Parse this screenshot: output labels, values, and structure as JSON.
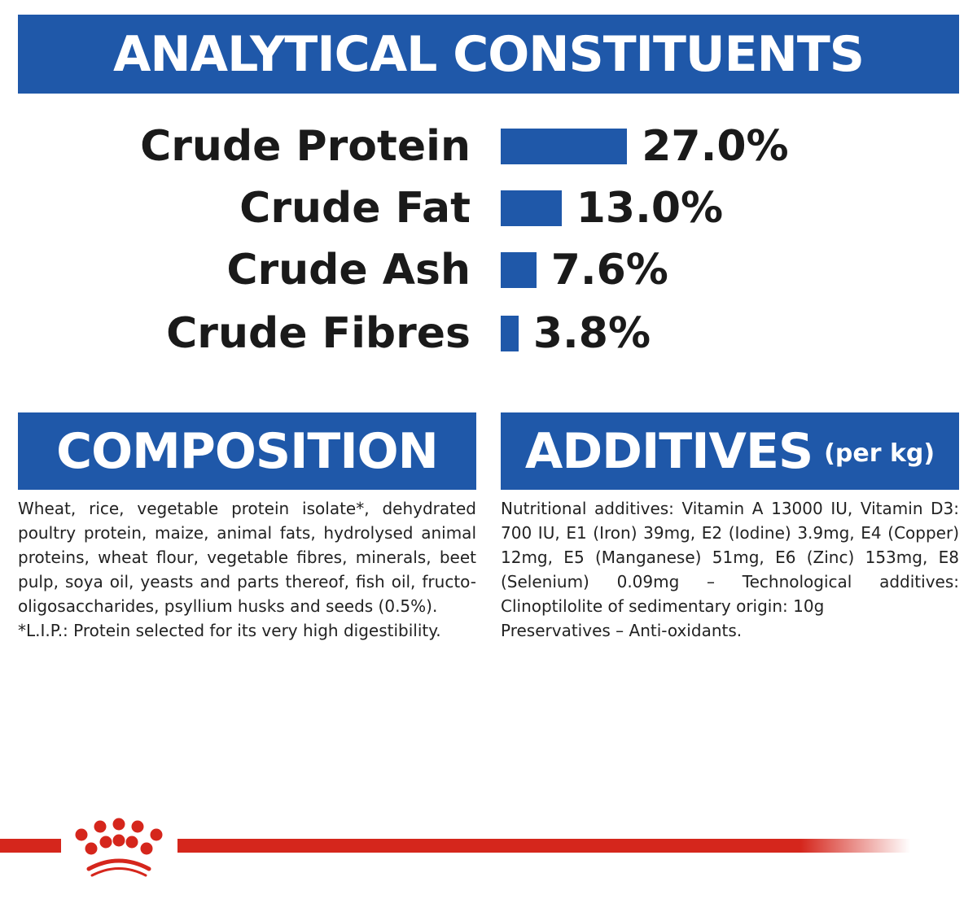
{
  "header": {
    "title": "ANALYTICAL CONSTITUENTS"
  },
  "chart_data": {
    "type": "bar",
    "orientation": "horizontal",
    "categories": [
      "Crude Protein",
      "Crude Fat",
      "Crude Ash",
      "Crude Fibres"
    ],
    "values": [
      27.0,
      13.0,
      7.6,
      3.8
    ],
    "value_labels": [
      "27.0%",
      "13.0%",
      "7.6%",
      "3.8%"
    ],
    "unit": "%",
    "grid": false,
    "bar_color": "#1f58a9"
  },
  "composition": {
    "title": "COMPOSITION",
    "text": "Wheat, rice, vegetable protein isolate*, dehydrated poultry protein, maize, animal fats, hydrolysed animal proteins, wheat flour, vegetable fibres, minerals, beet pulp, soya oil, yeasts and parts thereof, fish oil, fructo-oligosaccharides, psyllium husks and seeds (0.5%).",
    "footnote": "*L.I.P.: Protein selected for its very high digestibility."
  },
  "additives": {
    "title": "ADDITIVES",
    "subtitle": "(per kg)",
    "text": "Nutritional additives: Vitamin A 13000 IU, Vitamin D3: 700 IU, E1 (Iron) 39mg, E2 (Iodine) 3.9mg, E4 (Copper) 12mg, E5 (Manganese) 51mg, E6 (Zinc) 153mg, E8 (Selenium) 0.09mg – Technological additives: Clinoptilolite of sedimentary origin: 10g",
    "text2": "Preservatives – Anti-oxidants."
  },
  "colors": {
    "brand_blue": "#1f58a9",
    "brand_red": "#d5261c"
  },
  "footer": {
    "logo": "crown-logo"
  }
}
